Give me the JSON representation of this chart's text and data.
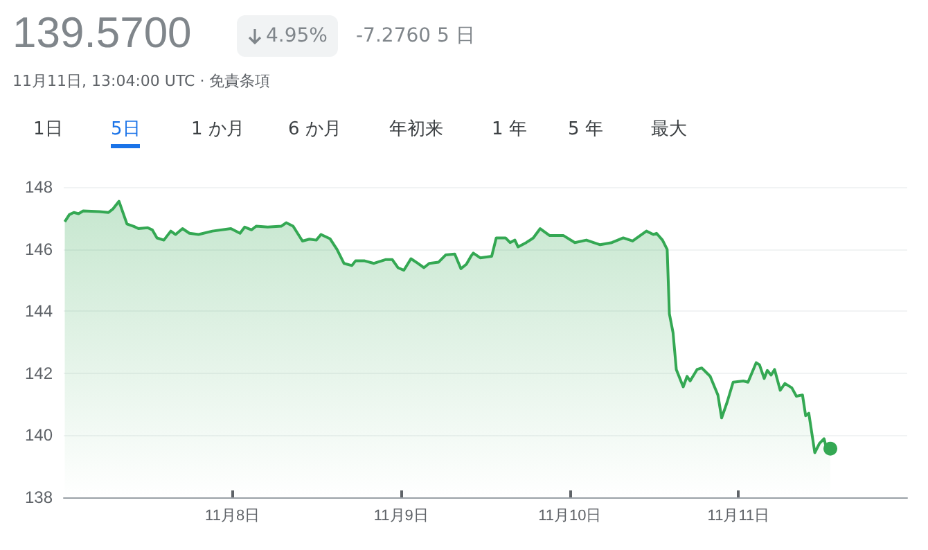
{
  "chart_data": {
    "type": "area",
    "title": "139.5700",
    "subtitle": "11月11日, 13:04:00 UTC · 免責条項",
    "annotations": [
      "4.95%",
      "-7.2760 5 日",
      "1日",
      "5日",
      "1 か月",
      "6 か月",
      "年初来",
      "1 年",
      "5 年",
      "最大"
    ],
    "series": [
      {
        "color": "#34a853",
        "x": [
          "--11-07T00:09",
          "--11-07T00:48",
          "--11-07T01:26",
          "--11-07T02:07",
          "--11-07T02:46",
          "--11-07T05:04",
          "--11-07T06:22",
          "--11-07T07:02",
          "--11-07T07:52",
          "--11-07T09:00",
          "--11-07T09:59",
          "--11-07T10:38",
          "--11-07T11:57",
          "--11-07T12:36",
          "--11-07T13:16",
          "--11-07T14:15",
          "--11-07T15:14",
          "--11-07T15:55",
          "--11-07T16:54",
          "--11-07T17:53",
          "--11-07T19:11",
          "--11-07T21:09",
          "--11-07T23:47",
          "--11-08T01:05",
          "--11-08T01:45",
          "--11-08T02:44",
          "--11-08T03:23",
          "--11-08T05:01",
          "--11-08T06:59",
          "--11-08T07:39",
          "--11-08T08:38",
          "--11-08T09:58",
          "--11-08T10:57",
          "--11-08T11:56",
          "--11-08T12:36",
          "--11-08T13:54",
          "--11-08T14:53",
          "--11-08T15:52",
          "--11-08T17:00",
          "--11-08T17:31",
          "--11-08T18:49",
          "--11-08T20:08",
          "--11-08T21:46",
          "--11-08T22:45",
          "--11-08T23:33",
          "--11-09T00:24",
          "--11-09T01:24",
          "--11-09T02:23",
          "--11-09T03:14",
          "--11-09T04:00",
          "--11-09T05:20",
          "--11-09T06:20",
          "--11-09T07:38",
          "--11-09T08:30",
          "--11-09T09:17",
          "--11-09T09:56",
          "--11-09T10:16",
          "--11-09T11:15",
          "--11-09T12:53",
          "--11-09T13:32",
          "--11-09T14:51",
          "--11-09T15:30",
          "--11-09T16:11",
          "--11-09T16:38",
          "--11-09T17:48",
          "--11-09T18:48",
          "--11-09T19:47",
          "--11-09T21:06",
          "--11-09T23:04",
          "--11-10T00:43",
          "--11-10T02:21",
          "--11-10T04:19",
          "--11-10T05:59",
          "--11-10T07:36",
          "--11-10T08:56",
          "--11-10T10:54",
          "--11-10T11:53",
          "--11-10T12:20",
          "--11-10T13:11",
          "--11-10T13:51",
          "--11-10T14:10",
          "--11-10T14:41",
          "--11-10T15:09",
          "--11-10T16:08",
          "--11-10T16:41",
          "--11-10T17:07",
          "--11-10T18:06",
          "--11-10T18:46",
          "--11-10T19:58",
          "--11-10T21:04",
          "--11-10T21:36",
          "--11-10T22:24",
          "--11-10T23:14",
          "--11-11T00:42",
          "--11-11T01:21",
          "--11-11T02:31",
          "--11-11T02:59",
          "--11-11T03:39",
          "--11-11T04:06",
          "--11-11T04:38",
          "--11-11T05:08",
          "--11-11T05:56",
          "--11-11T06:36",
          "--11-11T07:35",
          "--11-11T08:14",
          "--11-11T09:06",
          "--11-11T09:33",
          "--11-11T10:00",
          "--11-11T10:51",
          "--11-11T11:31",
          "--11-11T12:10",
          "--11-11T12:30",
          "--11-11T13:04"
        ],
        "values": [
          146.88,
          147.11,
          147.18,
          147.14,
          147.23,
          147.21,
          147.18,
          147.3,
          147.54,
          146.81,
          146.73,
          146.66,
          146.69,
          146.62,
          146.36,
          146.29,
          146.58,
          146.47,
          146.66,
          146.51,
          146.47,
          146.58,
          146.66,
          146.51,
          146.71,
          146.62,
          146.74,
          146.71,
          146.74,
          146.85,
          146.74,
          146.26,
          146.32,
          146.29,
          146.47,
          146.33,
          145.99,
          145.54,
          145.47,
          145.62,
          145.62,
          145.54,
          145.66,
          145.66,
          145.4,
          145.32,
          145.69,
          145.54,
          145.4,
          145.54,
          145.58,
          145.81,
          145.84,
          145.37,
          145.51,
          145.77,
          145.87,
          145.72,
          145.77,
          146.36,
          146.36,
          146.21,
          146.29,
          146.07,
          146.21,
          146.36,
          146.66,
          146.44,
          146.44,
          146.21,
          146.29,
          146.14,
          146.21,
          146.36,
          146.26,
          146.58,
          146.47,
          146.51,
          146.29,
          145.99,
          143.91,
          143.31,
          142.12,
          141.56,
          141.9,
          141.75,
          142.12,
          142.17,
          141.9,
          141.3,
          140.56,
          141.08,
          141.71,
          141.75,
          141.71,
          142.34,
          142.27,
          141.83,
          142.09,
          141.94,
          142.12,
          141.45,
          141.67,
          141.53,
          141.26,
          141.3,
          140.63,
          140.71,
          139.44,
          139.74,
          139.89,
          139.59,
          139.57
        ]
      }
    ],
    "xlim": [
      "--11-07",
      "--11-12"
    ],
    "xticks": [
      {
        "value": "--11-08",
        "label": "11月8日"
      },
      {
        "value": "--11-09",
        "label": "11月9日"
      },
      {
        "value": "--11-10",
        "label": "11月10日"
      },
      {
        "value": "--11-11",
        "label": "11月11日"
      }
    ],
    "ylim": [
      138,
      148
    ],
    "yticks": [
      138,
      140,
      142,
      144,
      146,
      148
    ],
    "grid": "y",
    "marker": "none",
    "line_style": "solid"
  }
}
